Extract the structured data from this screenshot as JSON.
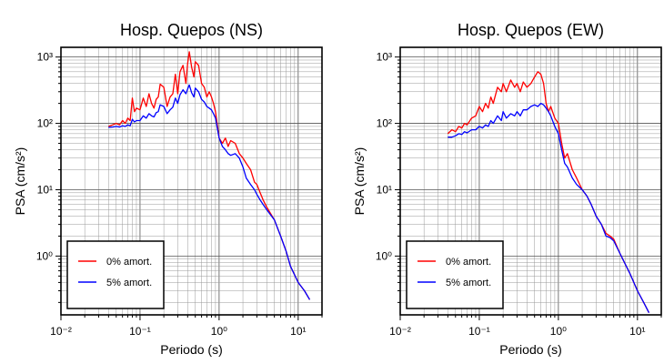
{
  "chart_data": [
    {
      "type": "line",
      "title": "Hosp. Quepos (NS)",
      "xlabel": "Periodo (s)",
      "ylabel": "PSA (cm/s²)",
      "xscale": "log",
      "yscale": "log",
      "xlim": [
        0.01,
        20
      ],
      "ylim": [
        0.13,
        1400
      ],
      "grid": true,
      "legend_position": "bottom-left",
      "x_tick_labels": [
        "10⁻²",
        "10⁻¹",
        "10⁰",
        "10¹"
      ],
      "y_tick_labels": [
        "10⁰",
        "10¹",
        "10²",
        "10³"
      ],
      "series": [
        {
          "name": "0% amort.",
          "color": "#ff0000",
          "x": [
            0.04,
            0.045,
            0.05,
            0.055,
            0.06,
            0.065,
            0.07,
            0.075,
            0.08,
            0.085,
            0.09,
            0.1,
            0.11,
            0.12,
            0.13,
            0.14,
            0.15,
            0.16,
            0.17,
            0.18,
            0.2,
            0.22,
            0.24,
            0.26,
            0.28,
            0.3,
            0.32,
            0.35,
            0.38,
            0.4,
            0.42,
            0.45,
            0.48,
            0.5,
            0.55,
            0.6,
            0.65,
            0.7,
            0.75,
            0.8,
            0.85,
            0.9,
            1.0,
            1.1,
            1.2,
            1.3,
            1.4,
            1.6,
            1.8,
            2.0,
            2.2,
            2.5,
            2.8,
            3.0,
            3.3,
            3.6,
            4.0,
            5.0,
            6.0,
            7.0,
            8.0,
            10.0,
            12.0,
            14.0
          ],
          "y": [
            90,
            95,
            100,
            95,
            110,
            100,
            120,
            110,
            240,
            150,
            170,
            160,
            240,
            180,
            280,
            200,
            170,
            230,
            250,
            390,
            350,
            180,
            250,
            280,
            550,
            280,
            600,
            750,
            400,
            800,
            1200,
            700,
            500,
            850,
            750,
            400,
            350,
            250,
            300,
            250,
            200,
            150,
            60,
            50,
            60,
            45,
            55,
            50,
            35,
            30,
            25,
            20,
            13,
            12,
            9,
            7,
            5.5,
            3.5,
            2.0,
            1.2,
            0.7,
            0.4,
            0.3,
            0.22
          ]
        },
        {
          "name": "5% amort.",
          "color": "#0000ff",
          "x": [
            0.04,
            0.045,
            0.05,
            0.055,
            0.06,
            0.065,
            0.07,
            0.075,
            0.08,
            0.085,
            0.09,
            0.1,
            0.11,
            0.12,
            0.13,
            0.14,
            0.15,
            0.16,
            0.17,
            0.18,
            0.2,
            0.22,
            0.24,
            0.26,
            0.28,
            0.3,
            0.32,
            0.35,
            0.38,
            0.4,
            0.42,
            0.45,
            0.48,
            0.5,
            0.55,
            0.6,
            0.65,
            0.7,
            0.75,
            0.8,
            0.85,
            0.9,
            1.0,
            1.1,
            1.2,
            1.3,
            1.4,
            1.6,
            1.8,
            2.0,
            2.2,
            2.5,
            2.8,
            3.0,
            3.3,
            3.6,
            4.0,
            5.0,
            6.0,
            7.0,
            8.0,
            10.0,
            12.0,
            14.0
          ],
          "y": [
            87,
            88,
            90,
            88,
            92,
            90,
            95,
            92,
            115,
            105,
            110,
            110,
            130,
            120,
            140,
            130,
            125,
            145,
            150,
            190,
            180,
            140,
            160,
            175,
            240,
            200,
            270,
            320,
            280,
            330,
            380,
            290,
            250,
            340,
            300,
            230,
            210,
            180,
            170,
            160,
            140,
            120,
            60,
            45,
            40,
            35,
            33,
            35,
            30,
            22,
            15,
            12,
            10,
            8.5,
            7,
            6,
            5.0,
            3.5,
            2.0,
            1.2,
            0.7,
            0.4,
            0.3,
            0.22
          ]
        }
      ]
    },
    {
      "type": "line",
      "title": "Hosp. Quepos (EW)",
      "xlabel": "Periodo (s)",
      "ylabel": "PSA (cm/s²)",
      "xscale": "log",
      "yscale": "log",
      "xlim": [
        0.01,
        20
      ],
      "ylim": [
        0.13,
        1400
      ],
      "grid": true,
      "legend_position": "bottom-left",
      "x_tick_labels": [
        "10⁻²",
        "10⁻¹",
        "10⁰",
        "10¹"
      ],
      "y_tick_labels": [
        "10⁰",
        "10¹",
        "10²",
        "10³"
      ],
      "series": [
        {
          "name": "0% amort.",
          "color": "#ff0000",
          "x": [
            0.04,
            0.045,
            0.05,
            0.055,
            0.06,
            0.065,
            0.07,
            0.08,
            0.09,
            0.1,
            0.11,
            0.12,
            0.13,
            0.14,
            0.15,
            0.17,
            0.19,
            0.2,
            0.22,
            0.25,
            0.28,
            0.3,
            0.33,
            0.36,
            0.4,
            0.45,
            0.5,
            0.55,
            0.6,
            0.65,
            0.7,
            0.75,
            0.8,
            0.9,
            1.0,
            1.1,
            1.2,
            1.3,
            1.5,
            1.7,
            2.0,
            2.3,
            2.6,
            3.0,
            3.5,
            4.0,
            4.5,
            5.0,
            6.0,
            8.0,
            10.0,
            12.0,
            14.0
          ],
          "y": [
            70,
            80,
            75,
            90,
            85,
            100,
            95,
            120,
            130,
            180,
            150,
            200,
            170,
            250,
            200,
            350,
            300,
            400,
            300,
            450,
            350,
            400,
            300,
            420,
            350,
            400,
            500,
            600,
            550,
            400,
            200,
            150,
            180,
            120,
            100,
            50,
            30,
            35,
            20,
            15,
            10,
            8,
            6,
            4,
            3,
            2.2,
            2.0,
            1.8,
            1.1,
            0.55,
            0.3,
            0.2,
            0.14
          ]
        },
        {
          "name": "5% amort.",
          "color": "#0000ff",
          "x": [
            0.04,
            0.045,
            0.05,
            0.055,
            0.06,
            0.065,
            0.07,
            0.08,
            0.09,
            0.1,
            0.11,
            0.12,
            0.13,
            0.14,
            0.15,
            0.17,
            0.19,
            0.2,
            0.22,
            0.25,
            0.28,
            0.3,
            0.33,
            0.36,
            0.4,
            0.45,
            0.5,
            0.55,
            0.6,
            0.65,
            0.7,
            0.75,
            0.8,
            0.9,
            1.0,
            1.1,
            1.2,
            1.3,
            1.5,
            1.7,
            2.0,
            2.3,
            2.6,
            3.0,
            3.5,
            4.0,
            4.5,
            5.0,
            6.0,
            8.0,
            10.0,
            12.0,
            14.0
          ],
          "y": [
            62,
            62,
            65,
            70,
            68,
            75,
            72,
            80,
            80,
            90,
            85,
            95,
            90,
            110,
            100,
            130,
            110,
            150,
            120,
            140,
            130,
            150,
            130,
            160,
            160,
            180,
            190,
            180,
            200,
            190,
            170,
            150,
            130,
            90,
            70,
            40,
            25,
            22,
            15,
            12,
            10,
            8,
            6,
            4,
            3,
            2.0,
            1.9,
            1.7,
            1.1,
            0.55,
            0.3,
            0.2,
            0.14
          ]
        }
      ]
    }
  ]
}
